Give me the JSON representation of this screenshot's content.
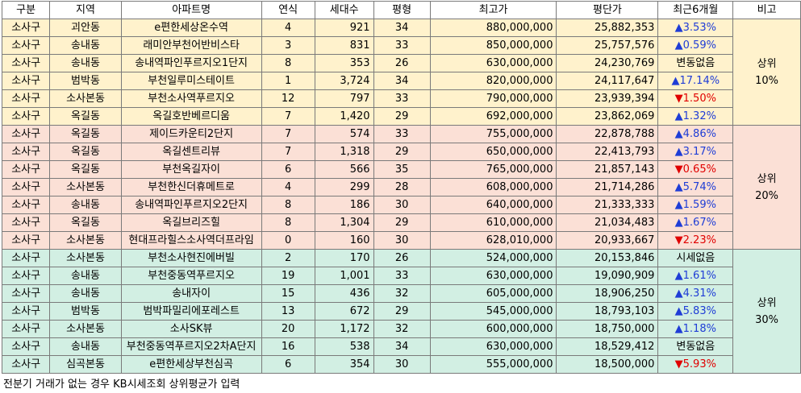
{
  "headers": [
    "구분",
    "지역",
    "아파트명",
    "연식",
    "세대수",
    "평형",
    "최고가",
    "평단가",
    "최근6개월",
    "비고"
  ],
  "groups": [
    {
      "label_line1": "상위",
      "label_line2": "10%",
      "rows": [
        {
          "gu": "소사구",
          "dong": "괴안동",
          "apt": "e편한세상온수역",
          "age": "4",
          "units": "921",
          "pyeong": "34",
          "max": "880,000,000",
          "per": "25,882,353",
          "chg": "▲3.53%",
          "dir": "up"
        },
        {
          "gu": "소사구",
          "dong": "송내동",
          "apt": "래미안부천어반비스타",
          "age": "3",
          "units": "831",
          "pyeong": "33",
          "max": "850,000,000",
          "per": "25,757,576",
          "chg": "▲0.59%",
          "dir": "up"
        },
        {
          "gu": "소사구",
          "dong": "송내동",
          "apt": "송내역파인푸르지오1단지",
          "age": "8",
          "units": "353",
          "pyeong": "26",
          "max": "630,000,000",
          "per": "24,230,769",
          "chg": "변동없음",
          "dir": "none"
        },
        {
          "gu": "소사구",
          "dong": "범박동",
          "apt": "부천일루미스테이트",
          "age": "1",
          "units": "3,724",
          "pyeong": "34",
          "max": "820,000,000",
          "per": "24,117,647",
          "chg": "▲17.14%",
          "dir": "up"
        },
        {
          "gu": "소사구",
          "dong": "소사본동",
          "apt": "부천소사역푸르지오",
          "age": "12",
          "units": "797",
          "pyeong": "33",
          "max": "790,000,000",
          "per": "23,939,394",
          "chg": "▼1.50%",
          "dir": "down"
        },
        {
          "gu": "소사구",
          "dong": "옥길동",
          "apt": "옥길호반베르디움",
          "age": "7",
          "units": "1,420",
          "pyeong": "29",
          "max": "692,000,000",
          "per": "23,862,069",
          "chg": "▲1.32%",
          "dir": "up"
        }
      ]
    },
    {
      "label_line1": "상위",
      "label_line2": "20%",
      "rows": [
        {
          "gu": "소사구",
          "dong": "옥길동",
          "apt": "제이드카운티2단지",
          "age": "7",
          "units": "574",
          "pyeong": "33",
          "max": "755,000,000",
          "per": "22,878,788",
          "chg": "▲4.86%",
          "dir": "up"
        },
        {
          "gu": "소사구",
          "dong": "옥길동",
          "apt": "옥길센트리뷰",
          "age": "7",
          "units": "1,318",
          "pyeong": "29",
          "max": "650,000,000",
          "per": "22,413,793",
          "chg": "▲3.17%",
          "dir": "up"
        },
        {
          "gu": "소사구",
          "dong": "옥길동",
          "apt": "부천옥길자이",
          "age": "6",
          "units": "566",
          "pyeong": "35",
          "max": "765,000,000",
          "per": "21,857,143",
          "chg": "▼0.65%",
          "dir": "down"
        },
        {
          "gu": "소사구",
          "dong": "소사본동",
          "apt": "부천한신더휴메트로",
          "age": "4",
          "units": "299",
          "pyeong": "28",
          "max": "608,000,000",
          "per": "21,714,286",
          "chg": "▲5.74%",
          "dir": "up"
        },
        {
          "gu": "소사구",
          "dong": "송내동",
          "apt": "송내역파인푸르지오2단지",
          "age": "8",
          "units": "186",
          "pyeong": "30",
          "max": "640,000,000",
          "per": "21,333,333",
          "chg": "▲1.59%",
          "dir": "up"
        },
        {
          "gu": "소사구",
          "dong": "옥길동",
          "apt": "옥길브리즈힐",
          "age": "8",
          "units": "1,304",
          "pyeong": "29",
          "max": "610,000,000",
          "per": "21,034,483",
          "chg": "▲1.67%",
          "dir": "up"
        },
        {
          "gu": "소사구",
          "dong": "소사본동",
          "apt": "현대프라힐스소사역더프라임",
          "age": "0",
          "units": "160",
          "pyeong": "30",
          "max": "628,010,000",
          "per": "20,933,667",
          "chg": "▼2.23%",
          "dir": "down"
        }
      ]
    },
    {
      "label_line1": "상위",
      "label_line2": "30%",
      "rows": [
        {
          "gu": "소사구",
          "dong": "소사본동",
          "apt": "부천소사현진에버빌",
          "age": "2",
          "units": "170",
          "pyeong": "26",
          "max": "524,000,000",
          "per": "20,153,846",
          "chg": "시세없음",
          "dir": "none"
        },
        {
          "gu": "소사구",
          "dong": "송내동",
          "apt": "부천중동역푸르지오",
          "age": "19",
          "units": "1,001",
          "pyeong": "33",
          "max": "630,000,000",
          "per": "19,090,909",
          "chg": "▲1.61%",
          "dir": "up"
        },
        {
          "gu": "소사구",
          "dong": "송내동",
          "apt": "송내자이",
          "age": "15",
          "units": "436",
          "pyeong": "32",
          "max": "605,000,000",
          "per": "18,906,250",
          "chg": "▲4.31%",
          "dir": "up"
        },
        {
          "gu": "소사구",
          "dong": "범박동",
          "apt": "범박파밀리에포레스트",
          "age": "13",
          "units": "672",
          "pyeong": "29",
          "max": "545,000,000",
          "per": "18,793,103",
          "chg": "▲5.83%",
          "dir": "up"
        },
        {
          "gu": "소사구",
          "dong": "소사본동",
          "apt": "소사SK뷰",
          "age": "20",
          "units": "1,172",
          "pyeong": "32",
          "max": "600,000,000",
          "per": "18,750,000",
          "chg": "▲1.18%",
          "dir": "up"
        },
        {
          "gu": "소사구",
          "dong": "송내동",
          "apt": "부천중동역푸르지오2차A단지",
          "age": "16",
          "units": "538",
          "pyeong": "34",
          "max": "630,000,000",
          "per": "18,529,412",
          "chg": "변동없음",
          "dir": "none"
        },
        {
          "gu": "소사구",
          "dong": "심곡본동",
          "apt": "e편한세상부천심곡",
          "age": "6",
          "units": "354",
          "pyeong": "30",
          "max": "555,000,000",
          "per": "18,500,000",
          "chg": "▼5.93%",
          "dir": "down"
        }
      ]
    }
  ],
  "footnote": "전분기 거래가 없는 경우 KB시세조회 상위평균가 입력",
  "colors": {
    "group1_bg": "#fff2cc",
    "group2_bg": "#fbe0d6",
    "group3_bg": "#d2efe3",
    "up": "#1f3dd6",
    "down": "#e00000"
  }
}
